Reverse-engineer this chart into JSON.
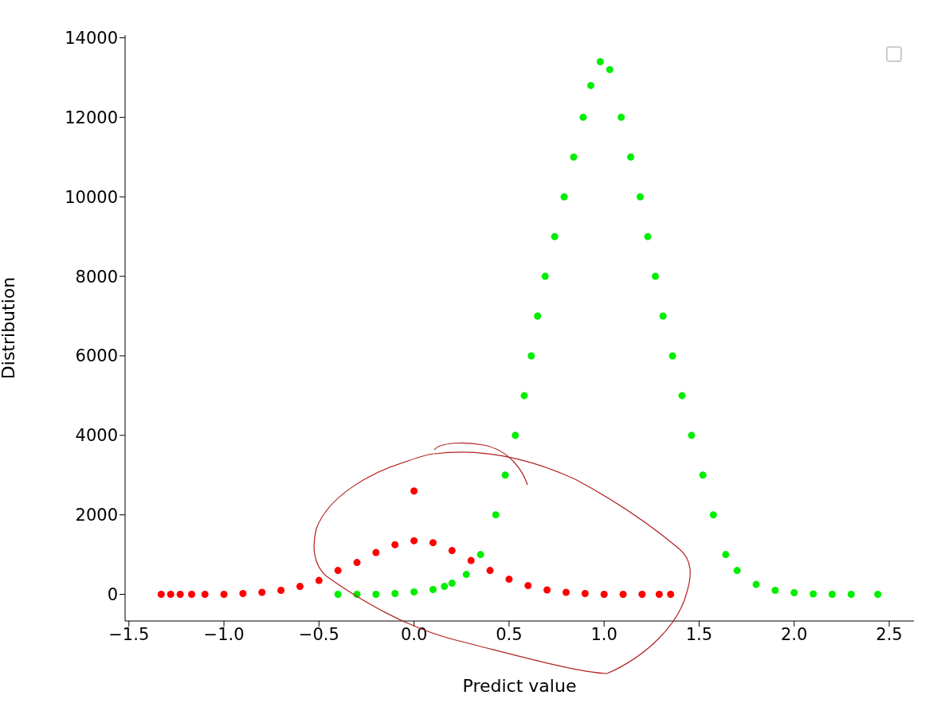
{
  "chart_data": {
    "type": "scatter",
    "xlabel": "Predict value",
    "ylabel": "Distribution",
    "marker": "circle",
    "xlim": [
      -1.52,
      2.63
    ],
    "ylim": [
      -670,
      14070
    ],
    "xticks": [
      {
        "value": -1.5,
        "label": "−1.5"
      },
      {
        "value": -1.0,
        "label": "−1.0"
      },
      {
        "value": -0.5,
        "label": "−0.5"
      },
      {
        "value": 0.0,
        "label": "0.0"
      },
      {
        "value": 0.5,
        "label": "0.5"
      },
      {
        "value": 1.0,
        "label": "1.0"
      },
      {
        "value": 1.5,
        "label": "1.5"
      },
      {
        "value": 2.0,
        "label": "2.0"
      },
      {
        "value": 2.5,
        "label": "2.5"
      }
    ],
    "yticks": [
      0,
      2000,
      4000,
      6000,
      8000,
      10000,
      12000,
      14000
    ],
    "series": [
      {
        "color": "#ff0000",
        "x": [
          -1.33,
          -1.28,
          -1.23,
          -1.17,
          -1.1,
          -1.0,
          -0.9,
          -0.8,
          -0.7,
          -0.6,
          -0.5,
          -0.4,
          -0.3,
          -0.2,
          -0.1,
          0.0,
          0.1,
          0.2,
          0.3,
          0.4,
          0.5,
          0.6,
          0.7,
          0.8,
          0.9,
          1.0,
          1.1,
          1.2,
          1.29,
          1.35,
          0.0
        ],
        "values": [
          0,
          0,
          0,
          0,
          0,
          0,
          20,
          50,
          100,
          200,
          350,
          600,
          800,
          1050,
          1250,
          1350,
          1300,
          1100,
          850,
          600,
          380,
          220,
          110,
          50,
          20,
          0,
          0,
          0,
          0,
          0,
          2600
        ]
      },
      {
        "color": "#00ee00",
        "x": [
          -0.4,
          -0.3,
          -0.2,
          -0.1,
          0.0,
          0.1,
          0.16,
          0.2,
          0.275,
          0.35,
          0.43,
          0.48,
          0.533,
          0.58,
          0.617,
          0.65,
          0.69,
          0.74,
          0.79,
          0.84,
          0.89,
          0.93,
          0.98,
          1.03,
          1.09,
          1.14,
          1.19,
          1.23,
          1.27,
          1.31,
          1.36,
          1.41,
          1.46,
          1.52,
          1.575,
          1.64,
          1.7,
          1.8,
          1.9,
          2.0,
          2.1,
          2.2,
          2.3,
          2.44
        ],
        "values": [
          0,
          0,
          0,
          20,
          60,
          120,
          200,
          280,
          500,
          1000,
          2000,
          3000,
          4000,
          5000,
          6000,
          7000,
          8000,
          9000,
          10000,
          11000,
          12000,
          12800,
          13400,
          13200,
          12000,
          11000,
          10000,
          9000,
          8000,
          7000,
          6000,
          5000,
          4000,
          3000,
          2000,
          1000,
          600,
          250,
          100,
          40,
          10,
          0,
          0,
          0
        ]
      }
    ]
  }
}
